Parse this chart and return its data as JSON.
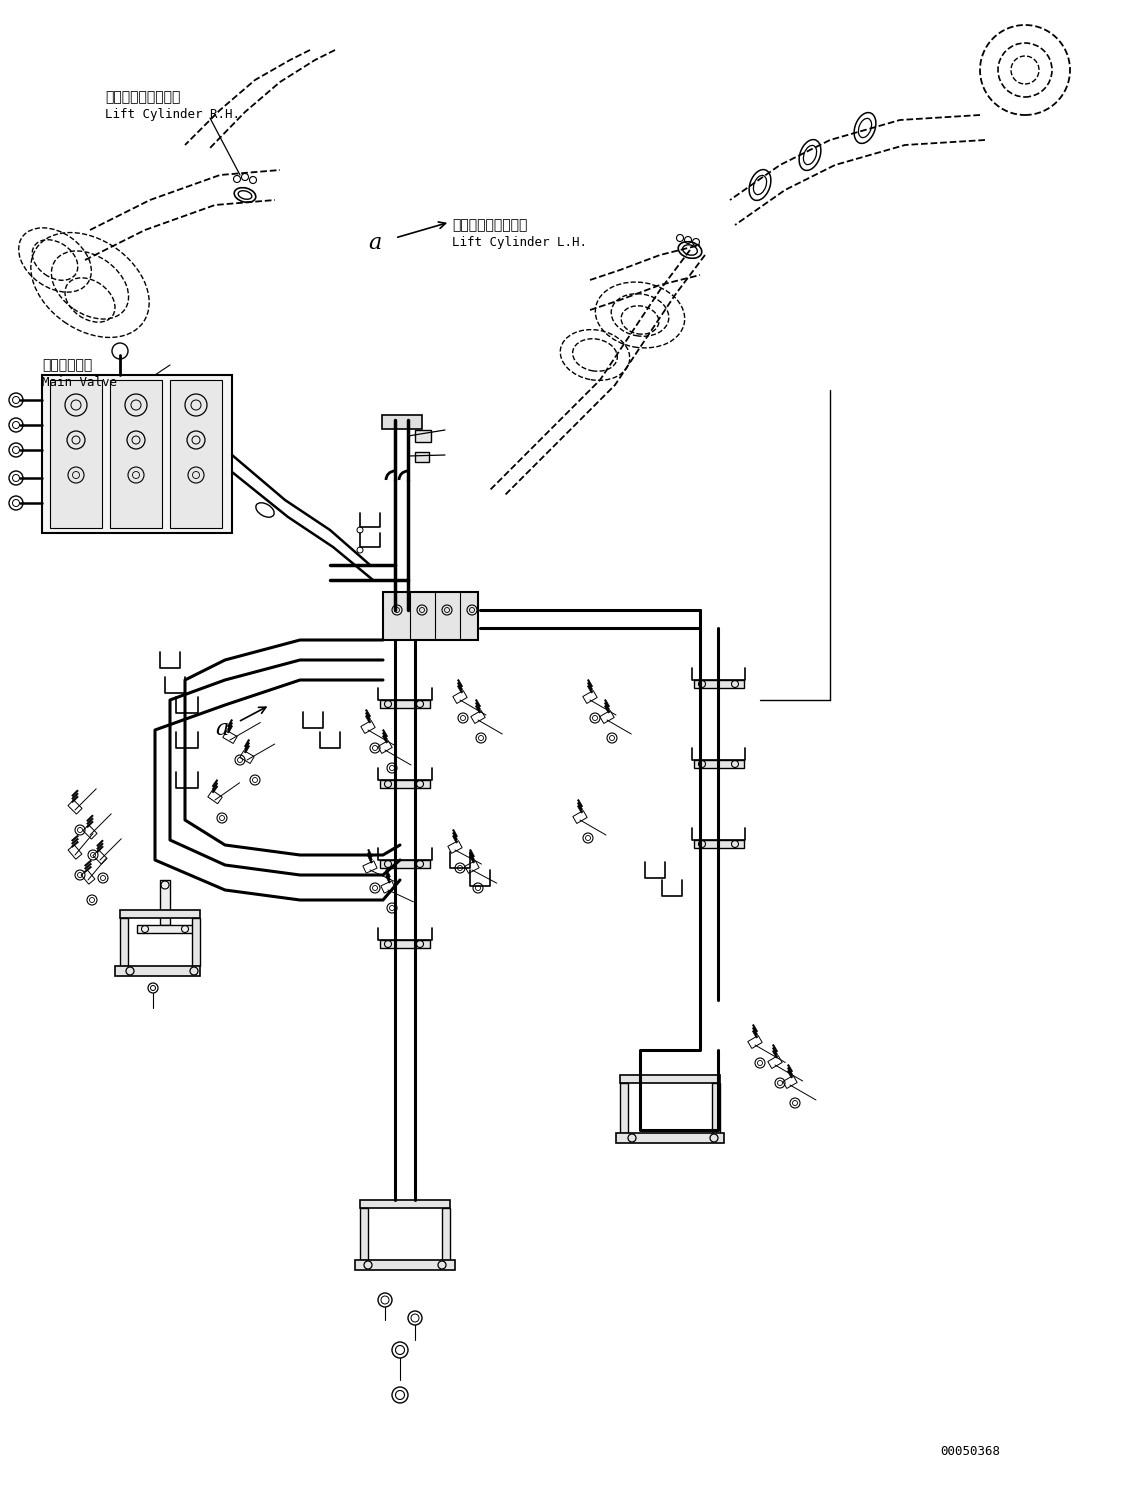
{
  "background_color": "#ffffff",
  "line_color": "#000000",
  "part_number": "00050368",
  "label_rh_jp": "リフトシリンダ　右",
  "label_rh_en": "Lift Cylinder R.H.",
  "label_lh_jp": "リフトシリンダ　左",
  "label_lh_en": "Lift Cylinder L.H.",
  "label_mv_jp": "メインバルブ",
  "label_mv_en": "Main Valve",
  "label_a": "a",
  "figsize": [
    11.43,
    14.91
  ],
  "dpi": 100
}
